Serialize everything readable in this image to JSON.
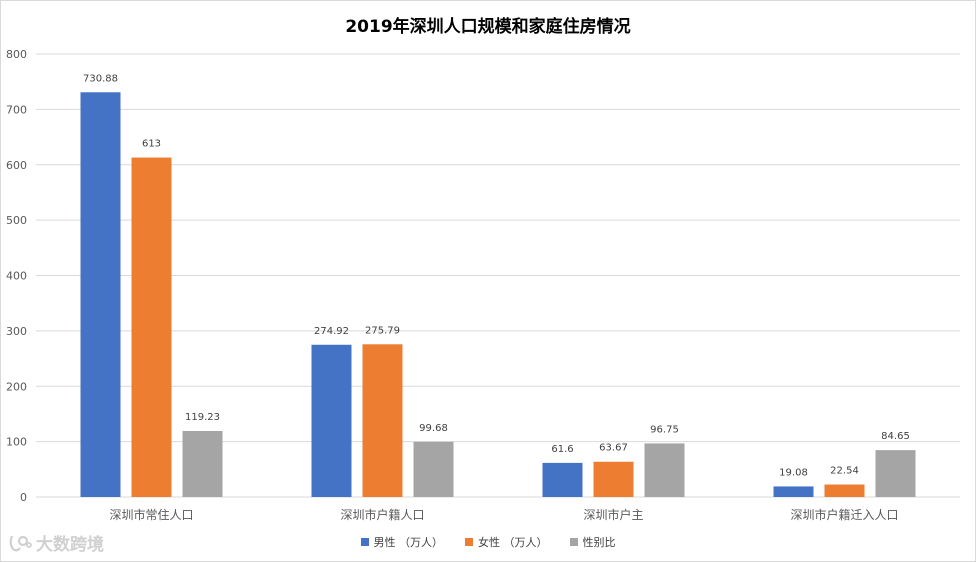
{
  "colors": {
    "male": "#4472C4",
    "female": "#ED7D31",
    "ratio": "#A5A5A5",
    "grid": "#D9D9D9",
    "axis_text": "#595959"
  },
  "watermark": {
    "text": "大数跨境",
    "icon": "logo-icon"
  },
  "chart_data": {
    "type": "bar",
    "title": "2019年深圳人口规模和家庭住房情况",
    "xlabel": "",
    "ylabel": "",
    "ylim": [
      0,
      800
    ],
    "yticks": [
      0,
      100,
      200,
      300,
      400,
      500,
      600,
      700,
      800
    ],
    "grid": true,
    "legend_position": "bottom",
    "categories": [
      "深圳市常住人口",
      "深圳市户籍人口",
      "深圳市户主",
      "深圳市户籍迁入人口"
    ],
    "series": [
      {
        "name": "男性 （万人）",
        "values": [
          730.88,
          274.92,
          61.6,
          19.08
        ],
        "labels": [
          "730.88",
          "274.92",
          "61.6",
          "19.08"
        ]
      },
      {
        "name": "女性 （万人）",
        "values": [
          613,
          275.79,
          63.67,
          22.54
        ],
        "labels": [
          "613",
          "275.79",
          "63.67",
          "22.54"
        ]
      },
      {
        "name": "性别比",
        "values": [
          119.23,
          99.68,
          96.75,
          84.65
        ],
        "labels": [
          "119.23",
          "99.68",
          "96.75",
          "84.65"
        ]
      }
    ]
  }
}
